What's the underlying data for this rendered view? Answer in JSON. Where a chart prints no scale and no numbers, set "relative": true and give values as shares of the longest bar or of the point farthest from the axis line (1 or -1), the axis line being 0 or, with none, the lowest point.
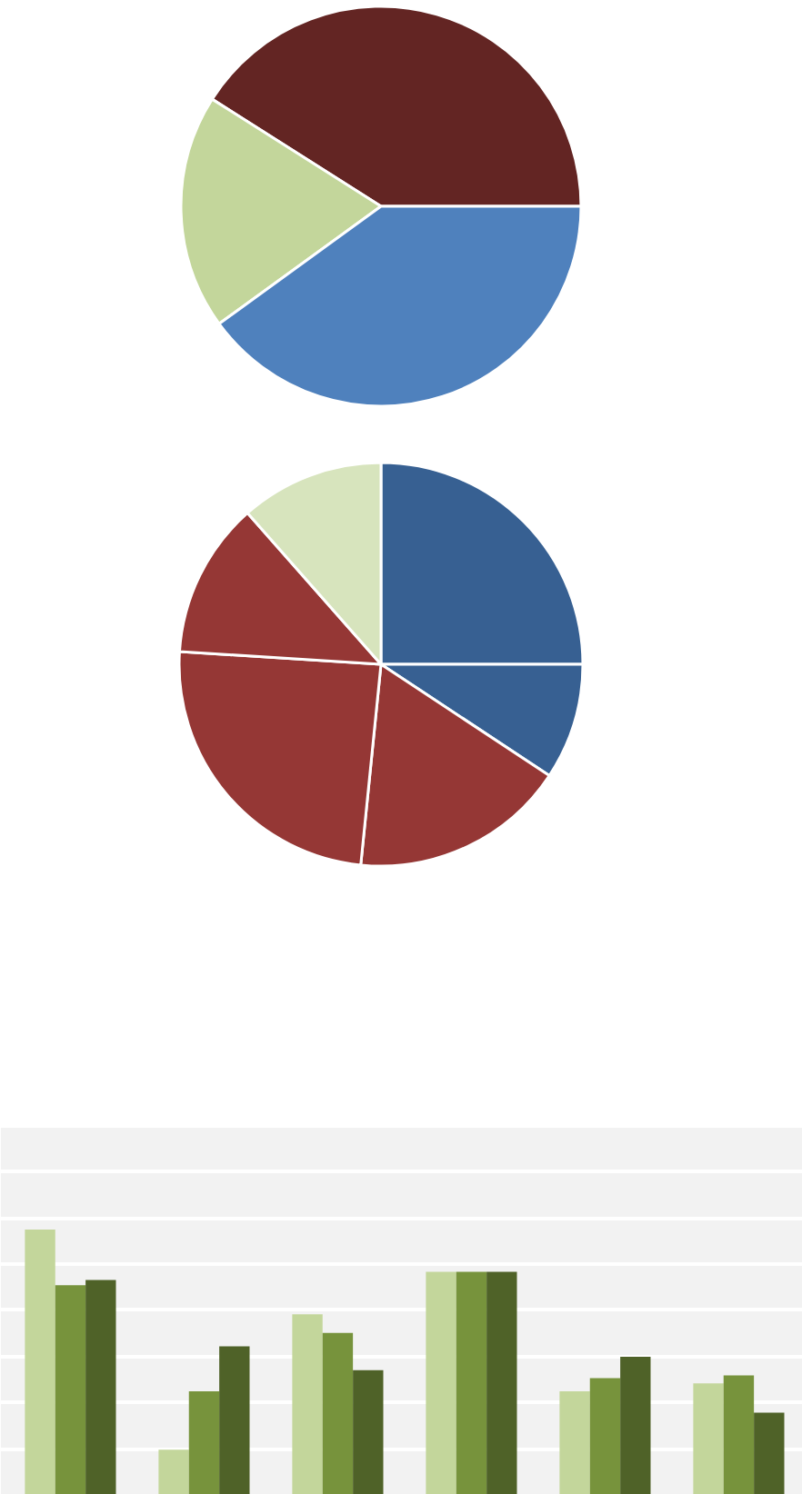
{
  "chart_data": [
    {
      "type": "pie",
      "categories": [
        null,
        null,
        null
      ],
      "values": [
        41,
        19,
        40
      ],
      "colors": [
        "#632523",
        "#c3d69b",
        "#4f81bd"
      ]
    },
    {
      "type": "pie",
      "categories": [
        null,
        null,
        null,
        null,
        null,
        null
      ],
      "values": [
        25,
        9.3,
        17.3,
        24.4,
        12.5,
        11.5
      ],
      "colors": [
        "#376092",
        "#376092",
        "#953735",
        "#953735",
        "#953735",
        "#d7e4bd"
      ]
    },
    {
      "type": "bar",
      "relative": true,
      "grid": "y",
      "categories": [
        null,
        null,
        null,
        null,
        null,
        null
      ],
      "series": [
        {
          "color": "#c3d69b",
          "values": [
            1,
            0.17,
            0.68,
            0.84,
            0.39,
            0.42
          ]
        },
        {
          "color": "#77933c",
          "values": [
            0.79,
            0.39,
            0.61,
            0.84,
            0.44,
            0.45
          ]
        },
        {
          "color": "#4f6228",
          "values": [
            0.81,
            0.56,
            0.47,
            0.84,
            0.52,
            0.31
          ]
        }
      ]
    }
  ]
}
